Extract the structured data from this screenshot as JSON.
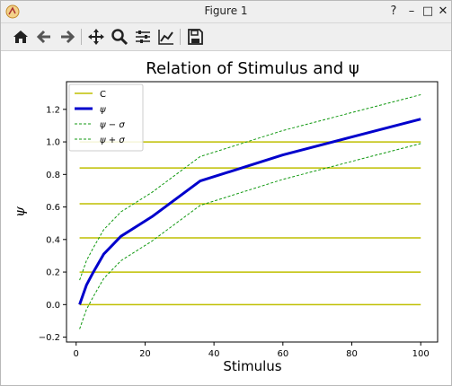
{
  "window": {
    "title": "Figure 1",
    "controls": {
      "help": "?",
      "minimize": "–",
      "maximize": "□",
      "close": "✕"
    }
  },
  "toolbar": [
    {
      "name": "home-icon",
      "tooltip": "Reset original view"
    },
    {
      "name": "back-icon",
      "tooltip": "Back"
    },
    {
      "name": "forward-icon",
      "tooltip": "Forward"
    },
    {
      "name": "pan-icon",
      "tooltip": "Pan"
    },
    {
      "name": "zoom-icon",
      "tooltip": "Zoom"
    },
    {
      "name": "subplots-icon",
      "tooltip": "Configure subplots"
    },
    {
      "name": "edit-axis-icon",
      "tooltip": "Edit axis"
    },
    {
      "name": "save-icon",
      "tooltip": "Save"
    }
  ],
  "chart_data": {
    "type": "line",
    "title": "Relation of Stimulus and ψ",
    "xlabel": "Stimulus",
    "ylabel": "ψ",
    "xlim": [
      -2.8,
      104.9
    ],
    "ylim": [
      -0.23,
      1.37
    ],
    "xticks": [
      0,
      20,
      40,
      60,
      80,
      100
    ],
    "yticks": [
      -0.2,
      0.0,
      0.2,
      0.4,
      0.6,
      0.8,
      1.0,
      1.2
    ],
    "grid": false,
    "legend": "top-left",
    "hlines": {
      "name": "C",
      "color": "#bfbf00",
      "x_range": [
        1,
        100
      ],
      "y": [
        0.0,
        0.2,
        0.41,
        0.62,
        0.84,
        1.0
      ]
    },
    "series": [
      {
        "name": "ψ",
        "style": "solid",
        "color": "#0000cc",
        "width": 3,
        "x": [
          1,
          2,
          3,
          5,
          8,
          13,
          22,
          36,
          60,
          80,
          100
        ],
        "y": [
          0.0,
          0.06,
          0.12,
          0.2,
          0.31,
          0.42,
          0.54,
          0.76,
          0.92,
          1.03,
          1.14
        ]
      },
      {
        "name": "ψ − σ",
        "style": "dashed",
        "color": "#119911",
        "width": 1,
        "x": [
          1,
          2,
          3,
          5,
          8,
          13,
          22,
          36,
          60,
          80,
          100
        ],
        "y": [
          -0.15,
          -0.09,
          -0.03,
          0.05,
          0.16,
          0.27,
          0.39,
          0.61,
          0.77,
          0.88,
          0.99
        ]
      },
      {
        "name": "ψ + σ",
        "style": "dashed",
        "color": "#119911",
        "width": 1,
        "x": [
          1,
          2,
          3,
          5,
          8,
          13,
          22,
          36,
          60,
          80,
          100
        ],
        "y": [
          0.15,
          0.21,
          0.27,
          0.35,
          0.46,
          0.57,
          0.69,
          0.91,
          1.07,
          1.18,
          1.29
        ]
      }
    ]
  }
}
